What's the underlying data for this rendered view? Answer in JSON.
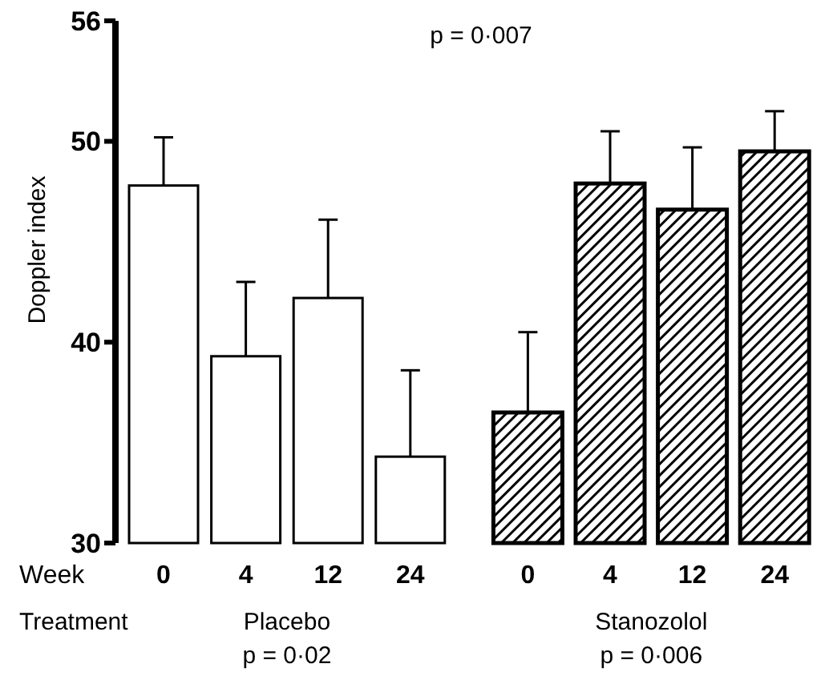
{
  "chart_data": {
    "type": "bar",
    "ylabel": "Doppler index",
    "xlabel": "Week",
    "categories": [
      "0",
      "4",
      "12",
      "24",
      "0",
      "4",
      "12",
      "24"
    ],
    "series": [
      {
        "name": "Placebo",
        "color": "#ffffff",
        "values": [
          47.8,
          39.3,
          42.2,
          34.3,
          null,
          null,
          null,
          null
        ],
        "errors": [
          [
            47.8,
            50.2
          ],
          [
            39.3,
            43.0
          ],
          [
            42.2,
            46.1
          ],
          [
            34.3,
            38.6
          ],
          null,
          null,
          null,
          null
        ]
      },
      {
        "name": "Stanozolol",
        "color": "#000000",
        "values": [
          null,
          null,
          null,
          null,
          36.5,
          47.9,
          46.6,
          49.5
        ],
        "errors": [
          null,
          null,
          null,
          null,
          [
            36.5,
            40.5
          ],
          [
            47.9,
            50.5
          ],
          [
            46.6,
            49.7
          ],
          [
            49.5,
            51.5
          ]
        ]
      }
    ],
    "ylim": [
      30,
      56
    ],
    "yticks": [
      30,
      40,
      50,
      56
    ],
    "grid": false,
    "legend": false,
    "annotations": [
      "p = 0·007",
      "Treatment",
      "p = 0·02",
      "p = 0·006"
    ]
  }
}
